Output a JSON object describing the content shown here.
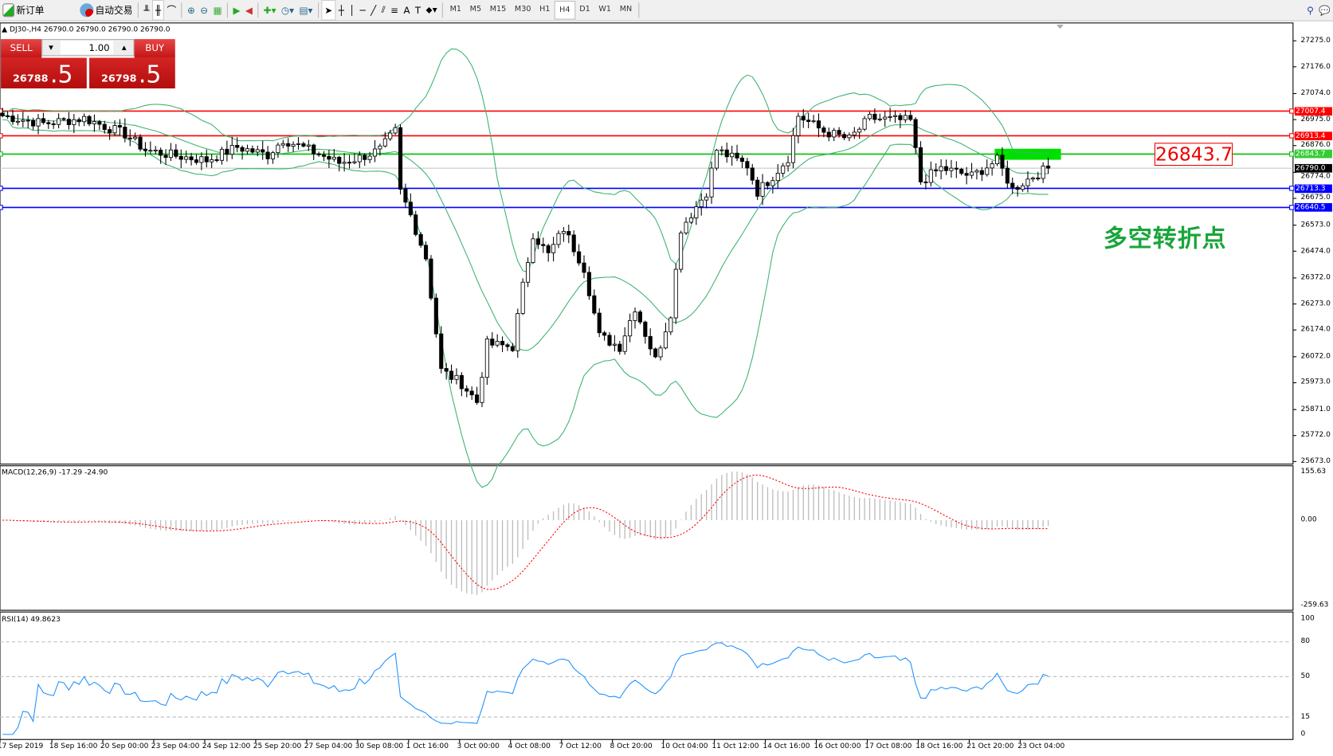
{
  "toolbar": {
    "new_order": "新订单",
    "auto_trading": "自动交易",
    "timeframes": [
      "M1",
      "M5",
      "M15",
      "M30",
      "H1",
      "H4",
      "D1",
      "W1",
      "MN"
    ],
    "active_timeframe": "H4"
  },
  "chart_header": "DJ30-,H4  26790.0 26790.0 26790.0 26790.0",
  "trade_panel": {
    "sell_label": "SELL",
    "buy_label": "BUY",
    "lot": "1.00",
    "sell_price_main": "26788",
    "sell_price_frac": ".5",
    "buy_price_main": "26798",
    "buy_price_frac": ".5"
  },
  "annotation": {
    "price_box": "26843.7",
    "text": "多空转折点"
  },
  "macd_label": "MACD(12,26,9) -17.29 -24.90",
  "rsi_label": "RSI(14) 49.8623",
  "colors": {
    "bull_bear_line": "#ff0000",
    "support_line": "#0000ff",
    "pivot_line": "#00c000",
    "bands": "#3cb371",
    "rsi": "#1e90ff",
    "macd_signal": "#ff0000"
  },
  "chart_data": {
    "type": "candlestick",
    "symbol": "DJ30-",
    "timeframe": "H4",
    "price_ticks": [
      "27275.0",
      "27176.0",
      "27074.0",
      "26975.0",
      "26876.0",
      "26774.0",
      "26675.0",
      "26573.0",
      "26474.0",
      "26372.0",
      "26273.0",
      "26174.0",
      "26072.0",
      "25973.0",
      "25871.0",
      "25772.0",
      "25673.0"
    ],
    "ylim": [
      25673,
      27275
    ],
    "horizontal_lines": [
      {
        "price": 27007.4,
        "label": "27007.4",
        "color": "#ff0000",
        "bg": "#ff0000"
      },
      {
        "price": 26913.4,
        "label": "26913.4",
        "color": "#ff0000",
        "bg": "#ff0000"
      },
      {
        "price": 26843.7,
        "label": "26843.7",
        "color": "#00c000",
        "bg": "#33cc33"
      },
      {
        "price": 26790.0,
        "label": "26790.0",
        "color": "#c0c0c0",
        "bg": "#000000"
      },
      {
        "price": 26713.3,
        "label": "26713.3",
        "color": "#0000ff",
        "bg": "#0000ff"
      },
      {
        "price": 26640.5,
        "label": "26640.5",
        "color": "#0000ff",
        "bg": "#0000ff"
      }
    ],
    "time_labels": [
      "17 Sep 2019",
      "18 Sep 16:00",
      "20 Sep 00:00",
      "23 Sep 04:00",
      "24 Sep 12:00",
      "25 Sep 20:00",
      "27 Sep 04:00",
      "30 Sep 08:00",
      "1 Oct 16:00",
      "3 Oct 00:00",
      "4 Oct 08:00",
      "7 Oct 12:00",
      "8 Oct 20:00",
      "10 Oct 04:00",
      "11 Oct 12:00",
      "14 Oct 16:00",
      "16 Oct 00:00",
      "17 Oct 08:00",
      "18 Oct 16:00",
      "21 Oct 20:00",
      "23 Oct 04:00"
    ],
    "close_anchors": [
      [
        0,
        26990
      ],
      [
        8,
        26960
      ],
      [
        16,
        26980
      ],
      [
        24,
        26920
      ],
      [
        28,
        26860
      ],
      [
        33,
        26840
      ],
      [
        40,
        26820
      ],
      [
        46,
        26870
      ],
      [
        52,
        26840
      ],
      [
        55,
        26900
      ],
      [
        60,
        26860
      ],
      [
        66,
        26810
      ],
      [
        70,
        26830
      ],
      [
        74,
        26860
      ],
      [
        77,
        26930
      ],
      [
        78,
        26700
      ],
      [
        80,
        26610
      ],
      [
        83,
        26450
      ],
      [
        86,
        26020
      ],
      [
        90,
        25970
      ],
      [
        93,
        25900
      ],
      [
        95,
        26120
      ],
      [
        100,
        26110
      ],
      [
        102,
        26340
      ],
      [
        104,
        26540
      ],
      [
        107,
        26460
      ],
      [
        110,
        26560
      ],
      [
        114,
        26410
      ],
      [
        117,
        26150
      ],
      [
        121,
        26110
      ],
      [
        124,
        26260
      ],
      [
        128,
        26060
      ],
      [
        131,
        26240
      ],
      [
        133,
        26560
      ],
      [
        138,
        26700
      ],
      [
        140,
        26860
      ],
      [
        146,
        26800
      ],
      [
        148,
        26700
      ],
      [
        151,
        26760
      ],
      [
        154,
        26830
      ],
      [
        156,
        26990
      ],
      [
        161,
        26930
      ],
      [
        166,
        26900
      ],
      [
        170,
        26980
      ],
      [
        178,
        26970
      ],
      [
        180,
        26740
      ],
      [
        184,
        26790
      ],
      [
        190,
        26760
      ],
      [
        195,
        26820
      ],
      [
        198,
        26710
      ],
      [
        202,
        26760
      ],
      [
        205,
        26790
      ]
    ],
    "macd": {
      "ticks": [
        "155.63",
        "0.00",
        "-259.63"
      ],
      "ylim": [
        -259.63,
        155.63
      ]
    },
    "rsi": {
      "ticks": [
        "100",
        "80",
        "50",
        "15",
        "0"
      ],
      "levels": [
        80,
        50,
        15
      ]
    }
  }
}
